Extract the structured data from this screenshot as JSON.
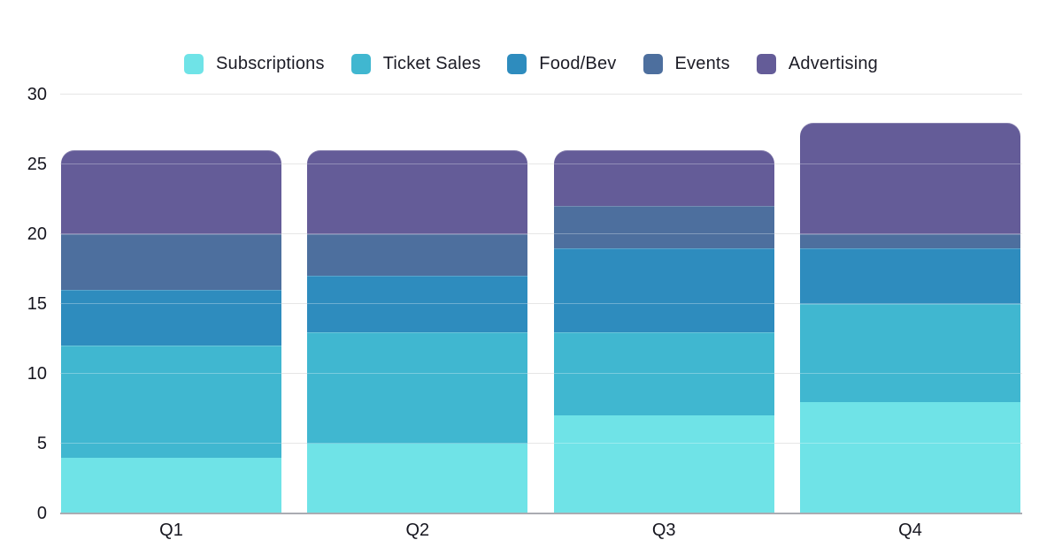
{
  "chart_data": {
    "type": "bar",
    "stacked": true,
    "categories": [
      "Q1",
      "Q2",
      "Q3",
      "Q4"
    ],
    "series": [
      {
        "name": "Subscriptions",
        "color": "#6FE3E7",
        "values": [
          4,
          5,
          7,
          8
        ]
      },
      {
        "name": "Ticket Sales",
        "color": "#40B7D0",
        "values": [
          8,
          8,
          6,
          7
        ]
      },
      {
        "name": "Food/Bev",
        "color": "#2E8CBE",
        "values": [
          4,
          4,
          6,
          4
        ]
      },
      {
        "name": "Events",
        "color": "#4D6F9E",
        "values": [
          4,
          3,
          3,
          1
        ]
      },
      {
        "name": "Advertising",
        "color": "#645C98",
        "values": [
          6,
          6,
          4,
          8
        ]
      }
    ],
    "totals": [
      26,
      26,
      26,
      28
    ],
    "ylim": [
      0,
      30
    ],
    "yticks": [
      0,
      5,
      10,
      15,
      20,
      25,
      30
    ],
    "grid": true,
    "legend_position": "top"
  },
  "colors": {
    "background": "#ffffff",
    "gridline": "#dcdcdc",
    "axis_line": "#aaacb2",
    "label_text": "#16161f"
  }
}
